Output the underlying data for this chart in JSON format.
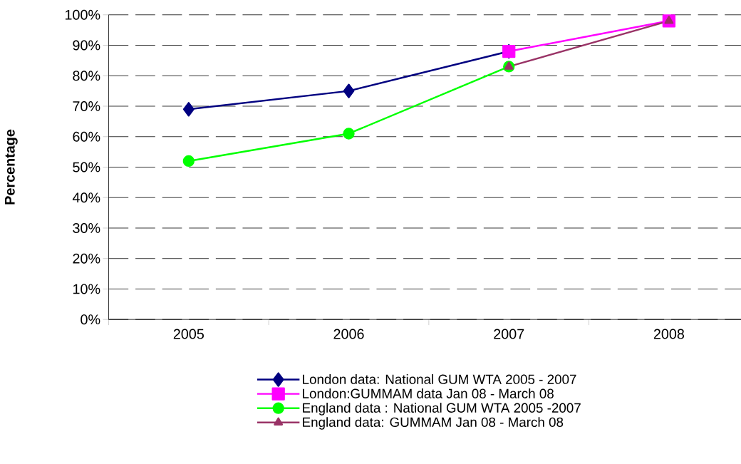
{
  "chart_data": {
    "type": "line",
    "ylabel": "Percentage",
    "categories": [
      "2005",
      "2006",
      "2007",
      "2008"
    ],
    "series": [
      {
        "name": "London data: National GUM WTA 2005 - 2007",
        "color": "#000080",
        "marker": "diamond",
        "values": [
          69,
          75,
          88,
          null
        ]
      },
      {
        "name": "London:GUMMAM data Jan 08 - March 08",
        "color": "#ff00ff",
        "marker": "square",
        "values": [
          null,
          null,
          88,
          98
        ]
      },
      {
        "name": "England data : National GUM WTA 2005 -2007",
        "color": "#00ff00",
        "marker": "circle",
        "values": [
          52,
          61,
          83,
          null
        ]
      },
      {
        "name": "England data: GUMMAM Jan 08 - March 08",
        "color": "#993366",
        "marker": "triangle",
        "values": [
          null,
          null,
          83,
          98
        ]
      }
    ],
    "ylim": [
      0,
      100
    ],
    "yticks": [
      {
        "value": 0,
        "label": "0%"
      },
      {
        "value": 10,
        "label": "10%"
      },
      {
        "value": 20,
        "label": "20%"
      },
      {
        "value": 30,
        "label": "30%"
      },
      {
        "value": 40,
        "label": "40%"
      },
      {
        "value": 50,
        "label": "50%"
      },
      {
        "value": 60,
        "label": "60%"
      },
      {
        "value": 70,
        "label": "70%"
      },
      {
        "value": 80,
        "label": "80%"
      },
      {
        "value": 90,
        "label": "90%"
      },
      {
        "value": 100,
        "label": "100%"
      }
    ],
    "grid": "y",
    "legend": "bottom",
    "line_style": "solid"
  }
}
